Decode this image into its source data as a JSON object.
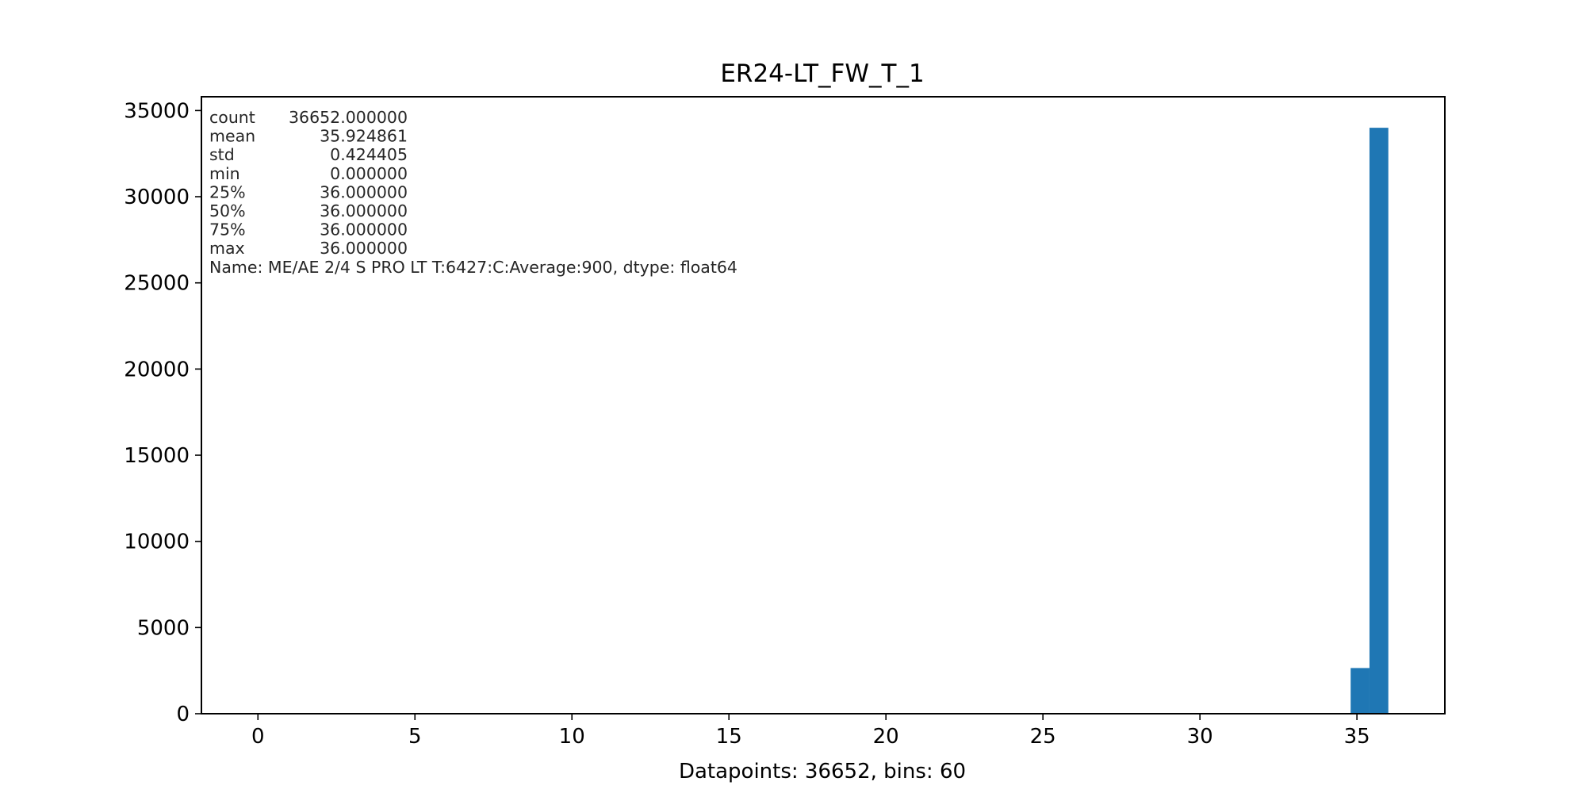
{
  "chart_data": {
    "type": "bar",
    "title": "ER24-LT_FW_T_1",
    "xlabel": "Datapoints: 36652, bins: 60",
    "ylabel": "",
    "xlim": [
      -1.8,
      37.8
    ],
    "ylim": [
      0,
      35800
    ],
    "x_ticks": [
      0,
      5,
      10,
      15,
      20,
      25,
      30,
      35
    ],
    "y_ticks": [
      0,
      5000,
      10000,
      15000,
      20000,
      25000,
      30000,
      35000
    ],
    "x_tick_labels": [
      "0",
      "5",
      "10",
      "15",
      "20",
      "25",
      "30",
      "35"
    ],
    "y_tick_labels": [
      "0",
      "5000",
      "10000",
      "15000",
      "20000",
      "25000",
      "30000",
      "35000"
    ],
    "grid": false,
    "bars_color": "#1f77b4",
    "bars": [
      {
        "x0": 34.8,
        "x1": 35.4,
        "value": 2650
      },
      {
        "x0": 35.4,
        "x1": 36.0,
        "value": 34000
      }
    ],
    "stats_lines": [
      {
        "label": "count",
        "value": "36652.000000"
      },
      {
        "label": "mean",
        "value": "35.924861"
      },
      {
        "label": "std",
        "value": "0.424405"
      },
      {
        "label": "min",
        "value": "0.000000"
      },
      {
        "label": "25%",
        "value": "36.000000"
      },
      {
        "label": "50%",
        "value": "36.000000"
      },
      {
        "label": "75%",
        "value": "36.000000"
      },
      {
        "label": "max",
        "value": "36.000000"
      }
    ],
    "stats_footer": "Name: ME/AE 2/4 S PRO LT T:6427:C:Average:900, dtype: float64"
  }
}
